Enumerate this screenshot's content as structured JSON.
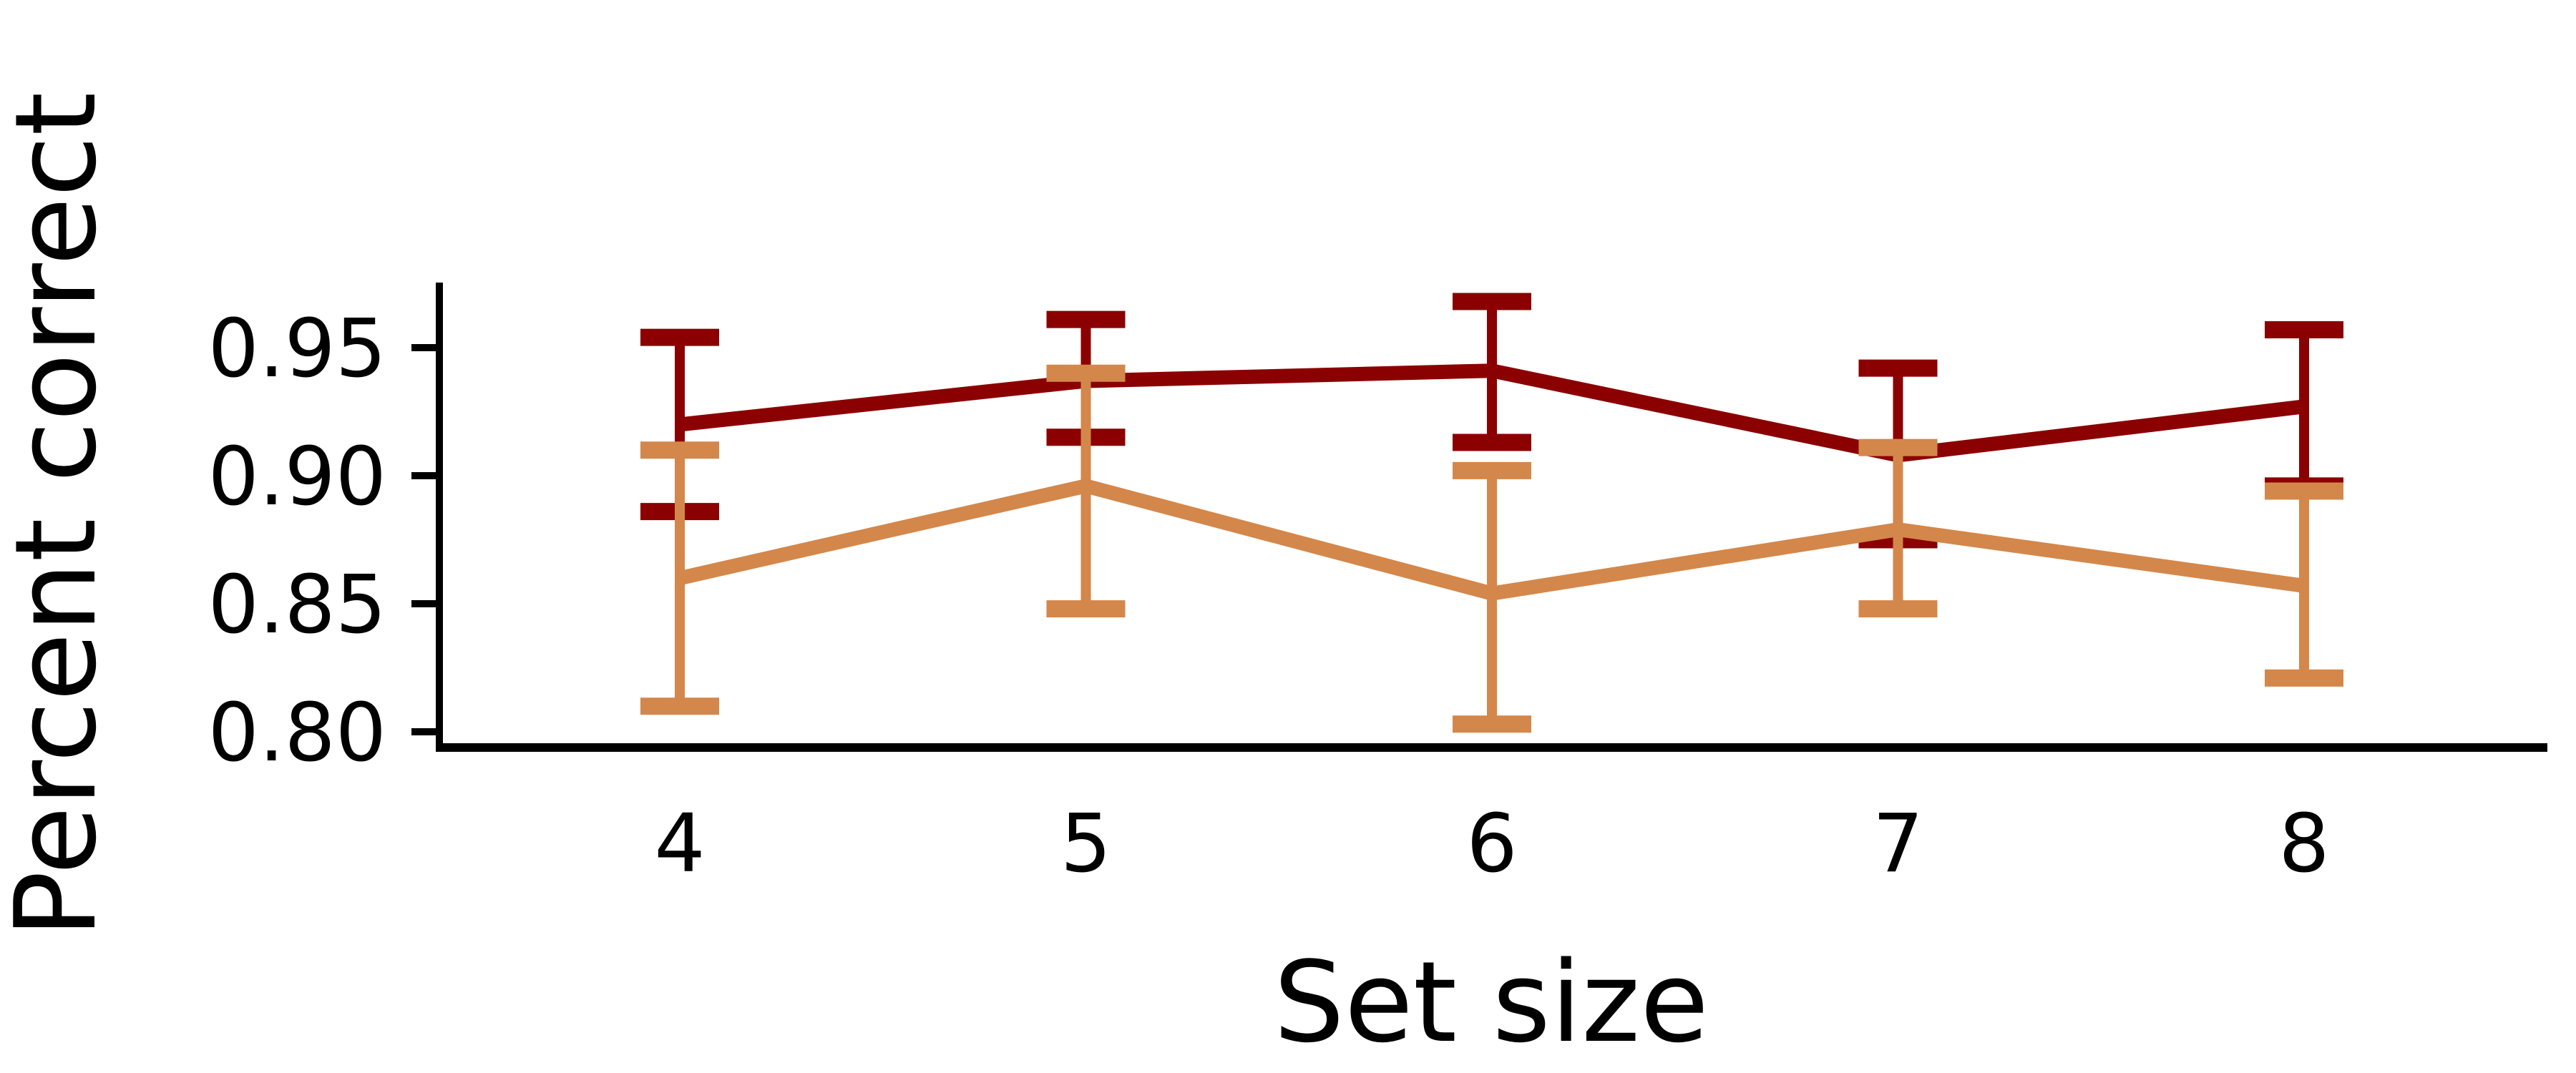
{
  "chart_data": {
    "type": "line",
    "xlabel": "Set size",
    "ylabel": "Percent correct",
    "x": [
      4,
      5,
      6,
      7,
      8
    ],
    "x_tick_labels": [
      "4",
      "5",
      "6",
      "7",
      "8"
    ],
    "y_ticks": [
      0.8,
      0.85,
      0.9,
      0.95
    ],
    "y_tick_labels": [
      "0.80",
      "0.85",
      "0.90",
      "0.95"
    ],
    "ylim": [
      0.795,
      0.975
    ],
    "grid": false,
    "legend": "none",
    "series": [
      {
        "color": "#8b0000",
        "values": [
          0.92,
          0.937,
          0.941,
          0.908,
          0.927
        ],
        "err_low": [
          0.886,
          0.915,
          0.913,
          0.875,
          0.896
        ],
        "err_high": [
          0.954,
          0.961,
          0.968,
          0.942,
          0.957
        ]
      },
      {
        "color": "#d4874a",
        "values": [
          0.86,
          0.896,
          0.854,
          0.879,
          0.857
        ],
        "err_low": [
          0.81,
          0.848,
          0.803,
          0.848,
          0.821
        ],
        "err_high": [
          0.91,
          0.94,
          0.902,
          0.911,
          0.894
        ]
      }
    ]
  }
}
